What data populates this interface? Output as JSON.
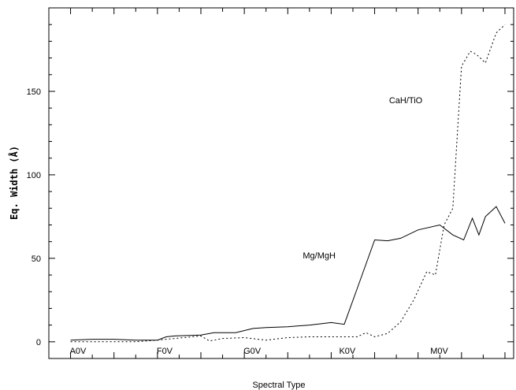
{
  "chart_data": {
    "type": "line",
    "title": "",
    "xlabel": "Spectral Type",
    "ylabel": "Eq. Width (Å)",
    "x_range": [
      -0.5,
      10.2
    ],
    "ylim": [
      -10,
      200
    ],
    "y_ticks": [
      0,
      50,
      100,
      150
    ],
    "x_tick_labels": [
      {
        "label": "A0V",
        "x": 0
      },
      {
        "label": "F0V",
        "x": 2
      },
      {
        "label": "G0V",
        "x": 4
      },
      {
        "label": "K0V",
        "x": 6.2
      },
      {
        "label": "M0V",
        "x": 8.3
      }
    ],
    "minor_tick_x": [
      0,
      0.5,
      1,
      1.5,
      2,
      2.5,
      3,
      3.5,
      4,
      4.5,
      5,
      5.5,
      6,
      6.5,
      7,
      7.5,
      8,
      8.5,
      9,
      9.5,
      10
    ],
    "grid": false,
    "legend": "none",
    "series": [
      {
        "name": "Mg/MgH",
        "label_at": {
          "x": 6.1,
          "y": 50
        },
        "style": "solid",
        "x": [
          0,
          0.5,
          1,
          1.5,
          2,
          2.2,
          2.4,
          3,
          3.3,
          3.8,
          4.2,
          4.5,
          5,
          5.5,
          6,
          6.3,
          6.6,
          7,
          7.3,
          7.6,
          8,
          8.5,
          8.8,
          9.05,
          9.25,
          9.4,
          9.55,
          9.8,
          10
        ],
        "y": [
          1,
          1.5,
          1.5,
          1,
          1,
          3,
          3.5,
          4,
          5.5,
          5.5,
          8,
          8.5,
          9,
          10,
          11.5,
          10.5,
          32,
          61,
          60.5,
          62,
          67,
          70,
          64,
          61,
          74,
          64,
          75,
          81,
          71
        ]
      },
      {
        "name": "CaH/TiO",
        "label_at": {
          "x": 8.1,
          "y": 143
        },
        "style": "dotted",
        "x": [
          0,
          0.5,
          1,
          1.5,
          2,
          2.4,
          3,
          3.2,
          3.5,
          4,
          4.5,
          5,
          5.5,
          6,
          6.3,
          6.6,
          6.8,
          7,
          7.3,
          7.6,
          7.9,
          8.2,
          8.4,
          8.6,
          8.8,
          9,
          9.2,
          9.35,
          9.55,
          9.8,
          10
        ],
        "y": [
          0,
          0,
          0,
          0,
          1,
          2,
          3.5,
          0.5,
          2,
          2.5,
          1,
          2.5,
          3,
          3,
          3,
          3,
          5.5,
          3,
          5,
          12,
          25,
          42,
          40,
          70,
          80,
          165,
          174,
          172,
          167,
          185,
          190
        ]
      }
    ]
  }
}
